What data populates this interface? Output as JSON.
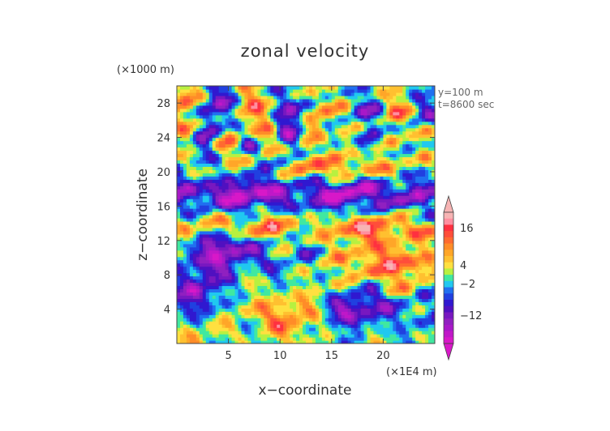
{
  "chart_data": {
    "type": "heatmap",
    "title": "zonal velocity",
    "xlabel": "x−coordinate",
    "ylabel": "z−coordinate",
    "x_unit": "(×1E4 m)",
    "y_unit": "(×1000 m)",
    "annotations": [
      "y=100 m",
      "t=8600 sec"
    ],
    "xlim": [
      0,
      25
    ],
    "ylim": [
      0,
      30
    ],
    "x_ticks": [
      5,
      10,
      15,
      20
    ],
    "y_ticks": [
      4,
      8,
      12,
      16,
      20,
      24,
      28
    ],
    "colorbar": {
      "labeled_ticks": [
        16,
        4,
        -2,
        -12
      ],
      "levels_top_to_bottom": [
        20,
        18,
        16,
        14,
        12,
        10,
        8,
        6,
        4,
        2,
        0,
        -2,
        -4,
        -6,
        -8,
        -10,
        -12,
        -14,
        -16,
        -18,
        -20
      ],
      "colors_top_to_bottom": [
        "#f7b4b4",
        "#ff8fa0",
        "#ff3040",
        "#ff4e3a",
        "#ff6a30",
        "#ff8c28",
        "#ffa628",
        "#ffc030",
        "#ffe040",
        "#b8f040",
        "#40e8a0",
        "#20c8f0",
        "#2070f0",
        "#2040e0",
        "#3018d0",
        "#5010c0",
        "#7818c0",
        "#9020c0",
        "#a818c8",
        "#c018c8",
        "#d818c8"
      ]
    },
    "grid": false
  }
}
